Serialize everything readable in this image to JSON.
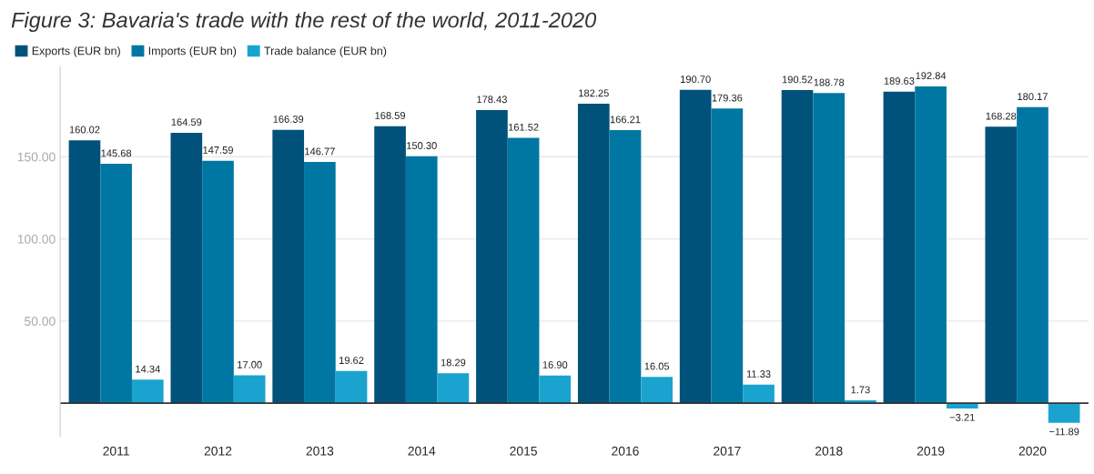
{
  "chart_data": {
    "type": "bar",
    "title": "Figure 3: Bavaria's trade with the rest of the world, 2011-2020",
    "categories": [
      "2011",
      "2012",
      "2013",
      "2014",
      "2015",
      "2016",
      "2017",
      "2018",
      "2019",
      "2020"
    ],
    "series": [
      {
        "name": "Exports (EUR bn)",
        "color": "#00527a",
        "values": [
          160.02,
          164.59,
          166.39,
          168.59,
          178.43,
          182.25,
          190.7,
          190.52,
          189.63,
          168.28
        ],
        "value_labels": [
          "160.02",
          "164.59",
          "166.39",
          "168.59",
          "178.43",
          "182.25",
          "190.70",
          "190.52",
          "189.63",
          "168.28"
        ]
      },
      {
        "name": "Imports (EUR bn)",
        "color": "#0077a3",
        "values": [
          145.68,
          147.59,
          146.77,
          150.3,
          161.52,
          166.21,
          179.36,
          188.78,
          192.84,
          180.17
        ],
        "value_labels": [
          "145.68",
          "147.59",
          "146.77",
          "150.30",
          "161.52",
          "166.21",
          "179.36",
          "188.78",
          "192.84",
          "180.17"
        ]
      },
      {
        "name": "Trade balance (EUR bn)",
        "color": "#1ba3d0",
        "values": [
          14.34,
          17.0,
          19.62,
          18.29,
          16.9,
          16.05,
          11.33,
          1.73,
          -3.21,
          -11.89
        ],
        "value_labels": [
          "14.34",
          "17.00",
          "19.62",
          "18.29",
          "16.90",
          "16.05",
          "11.33",
          "1.73",
          "−3.21",
          "−11.89"
        ]
      }
    ],
    "ylim": [
      -20,
      205
    ],
    "yticks": [
      {
        "value": 50,
        "label": "50.00"
      },
      {
        "value": 100,
        "label": "100.00"
      },
      {
        "value": 150,
        "label": "150.00"
      }
    ],
    "grid": "y",
    "legend": "top left"
  }
}
